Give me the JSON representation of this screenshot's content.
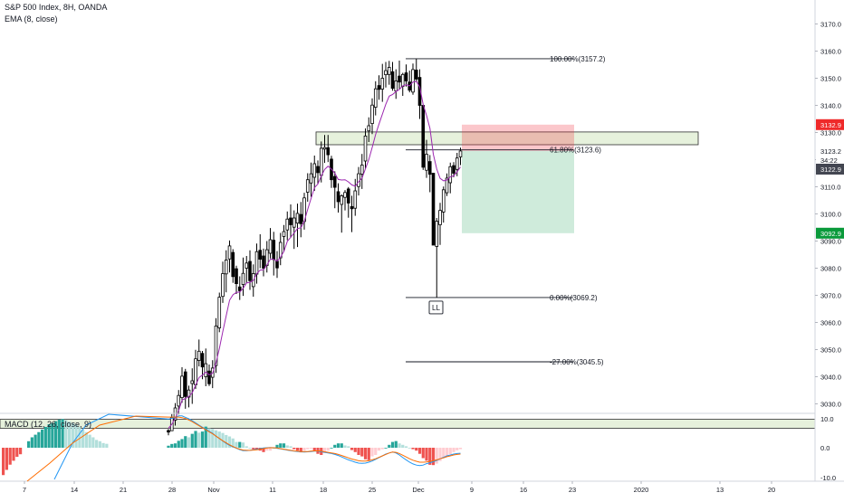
{
  "header": {
    "symbol_line": "S&P 500 Index, 8H, OANDA",
    "indicator_line": "EMA (8, close)"
  },
  "macd": {
    "label": "MACD (12, 26, close, 9)",
    "axis_ticks": [
      "10.0",
      "0.0",
      "-10.0"
    ]
  },
  "x_axis": {
    "labels": [
      "7",
      "14",
      "21",
      "28",
      "Nov",
      "11",
      "18",
      "25",
      "Dec",
      "9",
      "16",
      "23",
      "2020",
      "13",
      "20"
    ]
  },
  "price_axis": {
    "ticks": [
      "3170.0",
      "3160.0",
      "3150.0",
      "3140.0",
      "3130.0",
      "3120.0",
      "3110.0",
      "3100.0",
      "3090.0",
      "3080.0",
      "3070.0",
      "3060.0",
      "3050.0",
      "3040.0",
      "3030.0"
    ],
    "badges": [
      {
        "text": "3132.9",
        "value": 3132.9,
        "color": "#ef2a2a"
      },
      {
        "text": "3123.2",
        "value": 3123.2,
        "color": "#ffffff"
      },
      {
        "text": "34:22",
        "value": 3119.8,
        "color": "#ffffff"
      },
      {
        "text": "3122.9",
        "value": 3116.5,
        "color": "#434651"
      },
      {
        "text": "3092.9",
        "value": 3092.9,
        "color": "#0a9a3b"
      }
    ]
  },
  "fib": {
    "levels": [
      {
        "label": "100.00%(3157.2)",
        "price": 3157.2
      },
      {
        "label": "61.80%(3123.6)",
        "price": 3123.6
      },
      {
        "label": "0.00%(3069.2)",
        "price": 3069.2
      },
      {
        "label": "-27.00%(3045.5)",
        "price": 3045.5
      }
    ]
  },
  "annotations": {
    "ll_label": "LL"
  },
  "chart_data": {
    "type": "candlestick",
    "price_range": [
      3019,
      3178
    ],
    "macd_range": [
      -10.5,
      10.5
    ],
    "x_labels": [
      "7",
      "14",
      "21",
      "28",
      "Nov",
      "11",
      "18",
      "25",
      "Dec",
      "9",
      "16",
      "23",
      "2020",
      "13",
      "20"
    ],
    "zones": [
      {
        "name": "resistance",
        "low": 3125.5,
        "high": 3130.2
      },
      {
        "name": "support",
        "low": 3021,
        "high": 3024.3
      }
    ],
    "position": {
      "stop": 3132.9,
      "entry": 3123.2,
      "target": 3092.9
    },
    "candles": [
      [
        3020.2,
        3020.7,
        3018.4,
        3019.6
      ],
      [
        3020.1,
        3026.2,
        3020.0,
        3025.0
      ],
      [
        3024.0,
        3030.3,
        3022.0,
        3028.5
      ],
      [
        3029.2,
        3035.1,
        3026.1,
        3033.1
      ],
      [
        3032.3,
        3043.5,
        3030.4,
        3040.2
      ],
      [
        3041.8,
        3042.9,
        3028.2,
        3032.7
      ],
      [
        3032.5,
        3036.7,
        3028.7,
        3035.1
      ],
      [
        3037.5,
        3043.1,
        3030.0,
        3038.5
      ],
      [
        3037.0,
        3049.9,
        3035.5,
        3046.6
      ],
      [
        3046.0,
        3053.7,
        3043.8,
        3049.4
      ],
      [
        3048.6,
        3049.5,
        3039.1,
        3043.6
      ],
      [
        3040.0,
        3050.4,
        3036.5,
        3044.8
      ],
      [
        3042.1,
        3044.5,
        3036.6,
        3037.4
      ],
      [
        3039.8,
        3046.1,
        3035.8,
        3043.2
      ],
      [
        3044.1,
        3061.6,
        3041.4,
        3058.7
      ],
      [
        3058.0,
        3071.0,
        3056.4,
        3069.3
      ],
      [
        3069.6,
        3082.4,
        3067.2,
        3078.0
      ],
      [
        3077.9,
        3086.6,
        3071.1,
        3083.0
      ],
      [
        3083.4,
        3090.2,
        3078.4,
        3088.2
      ],
      [
        3085.8,
        3087.0,
        3074.6,
        3076.9
      ],
      [
        3079.8,
        3080.9,
        3070.5,
        3074.3
      ],
      [
        3073.1,
        3077.0,
        3068.3,
        3071.7
      ],
      [
        3074.0,
        3083.9,
        3069.8,
        3078.1
      ],
      [
        3080.0,
        3084.5,
        3074.6,
        3081.9
      ],
      [
        3082.5,
        3086.6,
        3072.0,
        3075.4
      ],
      [
        3073.2,
        3081.4,
        3069.5,
        3078.0
      ],
      [
        3077.8,
        3089.1,
        3074.3,
        3086.1
      ],
      [
        3086.6,
        3092.5,
        3080.0,
        3083.3
      ],
      [
        3084.5,
        3087.2,
        3077.0,
        3080.0
      ],
      [
        3081.0,
        3090.0,
        3078.4,
        3086.8
      ],
      [
        3085.5,
        3094.8,
        3083.6,
        3090.5
      ],
      [
        3090.3,
        3093.4,
        3077.3,
        3083.2
      ],
      [
        3082.6,
        3086.3,
        3076.4,
        3080.1
      ],
      [
        3083.8,
        3093.0,
        3081.1,
        3089.5
      ],
      [
        3091.7,
        3095.9,
        3086.0,
        3093.5
      ],
      [
        3094.1,
        3100.9,
        3090.3,
        3098.1
      ],
      [
        3098.5,
        3103.5,
        3091.2,
        3096.0
      ],
      [
        3095.1,
        3101.3,
        3087.1,
        3098.5
      ],
      [
        3096.6,
        3103.8,
        3087.8,
        3100.2
      ],
      [
        3099.8,
        3104.4,
        3091.4,
        3096.4
      ],
      [
        3097.2,
        3107.8,
        3094.2,
        3105.9
      ],
      [
        3108.0,
        3115.0,
        3104.5,
        3112.6
      ],
      [
        3111.4,
        3118.9,
        3106.3,
        3114.8
      ],
      [
        3113.5,
        3121.5,
        3108.5,
        3118.5
      ],
      [
        3117.5,
        3119.7,
        3111.2,
        3115.2
      ],
      [
        3114.2,
        3126.7,
        3111.6,
        3124.2
      ],
      [
        3123.9,
        3129.1,
        3118.8,
        3124.5
      ],
      [
        3124.4,
        3129.1,
        3119.1,
        3121.8
      ],
      [
        3120.2,
        3121.4,
        3109.6,
        3112.6
      ],
      [
        3113.8,
        3115.7,
        3102.1,
        3109.8
      ],
      [
        3108.2,
        3111.3,
        3100.5,
        3104.5
      ],
      [
        3103.5,
        3107.2,
        3093.1,
        3106.7
      ],
      [
        3106.1,
        3108.8,
        3101.3,
        3107.9
      ],
      [
        3109.2,
        3109.9,
        3098.6,
        3104.0
      ],
      [
        3102.7,
        3106.7,
        3093.3,
        3101.9
      ],
      [
        3102.1,
        3112.9,
        3099.3,
        3108.5
      ],
      [
        3110.1,
        3117.3,
        3106.8,
        3114.8
      ],
      [
        3114.7,
        3122.1,
        3109.2,
        3118.0
      ],
      [
        3119.5,
        3131.5,
        3116.6,
        3128.7
      ],
      [
        3130.6,
        3135.6,
        3126.5,
        3132.5
      ],
      [
        3133.3,
        3142.6,
        3129.4,
        3140.1
      ],
      [
        3139.3,
        3148.9,
        3136.3,
        3146.1
      ],
      [
        3147.3,
        3151.1,
        3142.1,
        3145.9
      ],
      [
        3146.0,
        3155.3,
        3141.3,
        3150.0
      ],
      [
        3151.3,
        3156.0,
        3146.6,
        3152.8
      ],
      [
        3151.4,
        3156.4,
        3147.6,
        3154.0
      ],
      [
        3152.4,
        3156.0,
        3145.4,
        3146.3
      ],
      [
        3145.3,
        3153.3,
        3142.4,
        3149.0
      ],
      [
        3150.8,
        3156.5,
        3146.1,
        3148.6
      ],
      [
        3147.0,
        3152.0,
        3143.5,
        3151.4
      ],
      [
        3152.0,
        3155.1,
        3146.9,
        3149.0
      ],
      [
        3148.6,
        3152.8,
        3144.8,
        3145.6
      ],
      [
        3144.9,
        3155.4,
        3143.9,
        3153.2
      ],
      [
        3153.0,
        3157.2,
        3148.7,
        3149.7
      ],
      [
        3150.3,
        3153.3,
        3135.0,
        3140.0
      ],
      [
        3140.0,
        3140.0,
        3116.2,
        3117.2
      ],
      [
        3116.1,
        3127.3,
        3113.3,
        3122.0
      ],
      [
        3119.3,
        3121.7,
        3108.0,
        3114.6
      ],
      [
        3115.0,
        3115.0,
        3088.5,
        3088.5
      ],
      [
        3088.0,
        3098.5,
        3069.2,
        3097.3
      ],
      [
        3096.0,
        3104.1,
        3088.6,
        3101.3
      ],
      [
        3100.7,
        3110.1,
        3096.8,
        3108.9
      ],
      [
        3107.8,
        3114.9,
        3106.6,
        3113.2
      ],
      [
        3111.5,
        3118.9,
        3107.6,
        3117.4
      ],
      [
        3117.8,
        3119.1,
        3113.5,
        3115.0
      ],
      [
        3116.4,
        3122.5,
        3113.9,
        3120.6
      ],
      [
        3121.0,
        3124.4,
        3118.0,
        3123.2
      ]
    ],
    "ema_8_close": [
      3021.0,
      3022.5,
      3024.8,
      3027.5,
      3031.4,
      3032.0,
      3032.7,
      3034.1,
      3036.9,
      3039.7,
      3040.6,
      3041.7,
      3040.7,
      3041.3,
      3045.1,
      3050.5,
      3056.6,
      3062.5,
      3068.2,
      3070.2,
      3071.1,
      3071.2,
      3072.6,
      3074.6,
      3074.8,
      3075.5,
      3078.0,
      3079.3,
      3079.4,
      3081.2,
      3083.3,
      3083.3,
      3082.6,
      3084.1,
      3086.2,
      3089.9,
      3091.4,
      3093.0,
      3094.6,
      3094.9,
      3097.3,
      3101.7,
      3105.7,
      3109.7,
      3111.0,
      3114.0,
      3116.4,
      3117.6,
      3116.5,
      3115.0,
      3112.7,
      3112.5,
      3112.6,
      3111.8,
      3110.7,
      3110.2,
      3111.9,
      3113.2,
      3116.6,
      3120.1,
      3124.5,
      3129.3,
      3133.1,
      3136.8,
      3140.4,
      3143.4,
      3144.0,
      3145.1,
      3145.9,
      3147.2,
      3147.6,
      3147.2,
      3148.6,
      3148.8,
      3146.8,
      3140.3,
      3136.3,
      3131.5,
      3122.0,
      3116.5,
      3113.1,
      3112.2,
      3112.5,
      3113.7,
      3114.0,
      3115.5,
      3117.3
    ],
    "macd_histogram": [
      0.7,
      1.3,
      1.5,
      2.4,
      3.0,
      4.0,
      3.6,
      4.8,
      5.8,
      5.2,
      5.6,
      7.3,
      6.7,
      6.5,
      6.0,
      5.6,
      5.1,
      4.4,
      3.9,
      3.2,
      2.0,
      2.0,
      1.8,
      0.5,
      0.0,
      -0.5,
      -0.8,
      -1.0,
      -1.5,
      -1.0,
      -1.0,
      0.0,
      1.0,
      1.5,
      1.5,
      0.8,
      0.5,
      -0.5,
      -1.0,
      -1.6,
      -1.0,
      -0.5,
      -0.3,
      -1.0,
      -2.1,
      -2.5,
      -1.8,
      -1.0,
      0.0,
      1.0,
      1.5,
      1.5,
      0.8,
      0.5,
      -0.8,
      -1.5,
      -2.5,
      -3.0,
      -4.0,
      -4.3,
      -3.0,
      -2.5,
      -1.0,
      -0.5,
      0.0,
      1.0,
      2.0,
      2.3,
      1.5,
      1.0,
      0.5,
      0.0,
      -0.5,
      -1.0,
      -2.1,
      -3.6,
      -4.5,
      -5.9,
      -6.0,
      -5.5,
      -4.6,
      -3.6,
      -3.0,
      -2.2,
      -1.5,
      -0.9,
      -0.5
    ],
    "macd_line": [
      9.9,
      10.2,
      10.4,
      11.0,
      11.0,
      10.5,
      10.0,
      9.3,
      8.6,
      7.8,
      7.1,
      6.4,
      5.7,
      5.0,
      4.0,
      3.2,
      2.3,
      1.5,
      0.8,
      0.3,
      -0.2,
      -0.7,
      -1.0,
      -1.0,
      -0.9,
      -0.7,
      -0.5,
      -0.3,
      -0.1,
      0.0,
      0.1,
      0.0,
      -0.2,
      -0.4,
      -0.6,
      -0.8,
      -1.0,
      -1.2,
      -1.3,
      -1.4,
      -1.5,
      -1.4,
      -1.3,
      -1.2,
      -1.2,
      -1.4,
      -1.6,
      -1.8,
      -2.0,
      -2.3,
      -2.7,
      -3.2,
      -3.7,
      -4.2,
      -4.6,
      -5.0,
      -5.3,
      -5.4,
      -5.3,
      -5.0,
      -4.6,
      -4.0,
      -3.4,
      -2.8,
      -2.2,
      -1.8,
      -1.5,
      -1.8,
      -2.5,
      -3.4,
      -4.2,
      -5.0,
      -5.6,
      -6.0,
      -6.2,
      -6.0,
      -5.5,
      -5.2,
      -4.8,
      -4.4,
      -3.8,
      -3.3,
      -2.8,
      -2.5,
      -2.2,
      -2.0,
      -1.9
    ],
    "signal_line": [
      10.6,
      10.6,
      10.6,
      10.6,
      10.4,
      10.1,
      9.6,
      9.0,
      8.3,
      7.6,
      6.9,
      6.2,
      5.5,
      4.8,
      4.0,
      3.2,
      2.4,
      1.7,
      1.0,
      0.4,
      -0.1,
      -0.5,
      -0.8,
      -0.9,
      -0.9,
      -0.8,
      -0.7,
      -0.5,
      -0.3,
      -0.1,
      0.0,
      0.0,
      -0.1,
      -0.3,
      -0.5,
      -0.7,
      -0.9,
      -1.1,
      -1.2,
      -1.3,
      -1.3,
      -1.3,
      -1.2,
      -1.1,
      -1.1,
      -1.2,
      -1.4,
      -1.6,
      -1.8,
      -2.0,
      -2.3,
      -2.7,
      -3.1,
      -3.5,
      -3.9,
      -4.2,
      -4.5,
      -4.6,
      -4.6,
      -4.5,
      -4.2,
      -3.8,
      -3.3,
      -2.8,
      -2.3,
      -1.8,
      -1.5,
      -1.6,
      -2.0,
      -2.6,
      -3.2,
      -3.8,
      -4.3,
      -4.7,
      -5.0,
      -5.0,
      -4.9,
      -4.7,
      -4.5,
      -4.2,
      -3.8,
      -3.5,
      -3.1,
      -2.8,
      -2.5,
      -2.3,
      -2.2
    ]
  }
}
